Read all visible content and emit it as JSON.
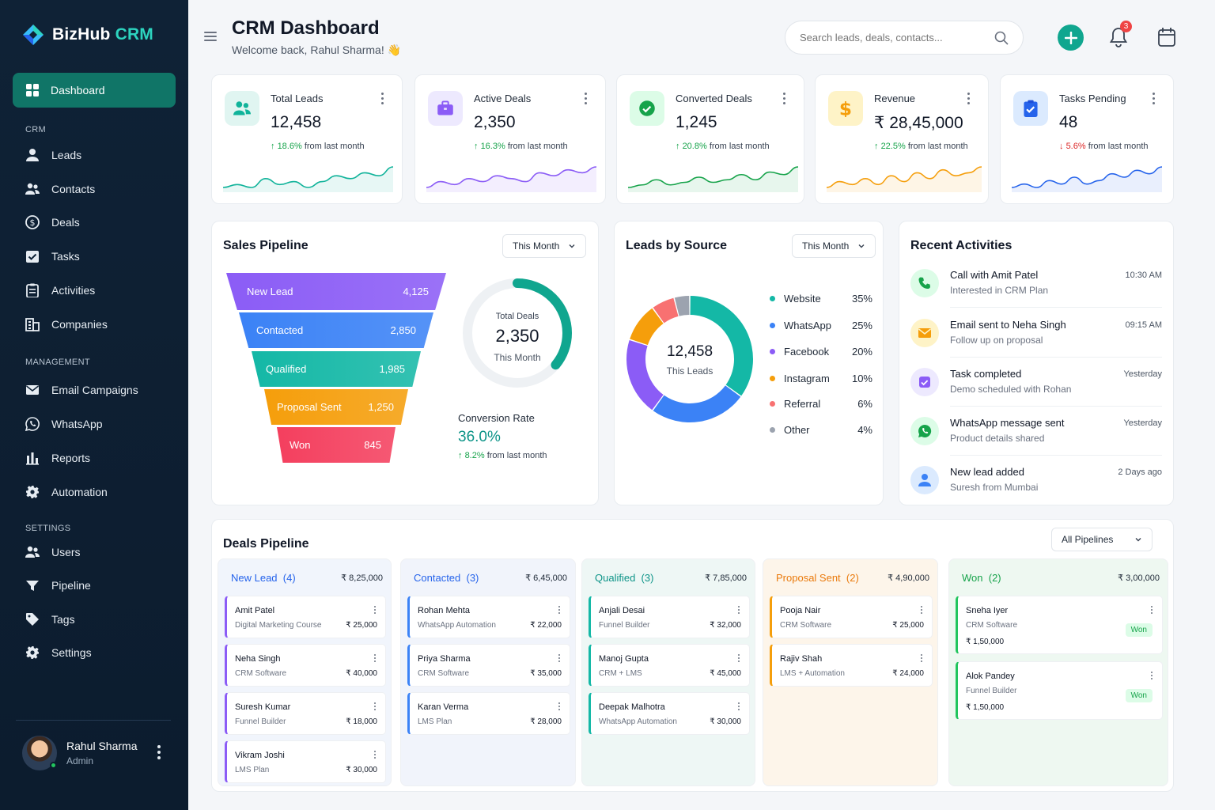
{
  "app": {
    "brand": "BizHub",
    "brand_accent": "CRM"
  },
  "sidebar": {
    "active": {
      "label": "Dashboard",
      "icon": "grid-icon"
    },
    "sections": [
      {
        "title": "CRM"
      },
      {
        "title": "MANAGEMENT"
      },
      {
        "title": "SETTINGS"
      }
    ],
    "items": [
      {
        "label": "Leads",
        "icon": "user-icon"
      },
      {
        "label": "Contacts",
        "icon": "users-icon"
      },
      {
        "label": "Deals",
        "icon": "dollar-icon"
      },
      {
        "label": "Tasks",
        "icon": "checkbox-icon"
      },
      {
        "label": "Activities",
        "icon": "clipboard-icon"
      },
      {
        "label": "Companies",
        "icon": "building-icon"
      },
      {
        "label": "Email Campaigns",
        "icon": "mail-icon"
      },
      {
        "label": "WhatsApp",
        "icon": "whatsapp-icon"
      },
      {
        "label": "Reports",
        "icon": "bar-chart-icon"
      },
      {
        "label": "Automation",
        "icon": "gear-icon"
      },
      {
        "label": "Users",
        "icon": "users-icon"
      },
      {
        "label": "Pipeline",
        "icon": "funnel-icon"
      },
      {
        "label": "Tags",
        "icon": "tag-icon"
      },
      {
        "label": "Settings",
        "icon": "gear-icon"
      }
    ],
    "user": {
      "name": "Rahul Sharma",
      "role": "Admin"
    }
  },
  "header": {
    "title": "CRM Dashboard",
    "subtitle": "Welcome back, Rahul Sharma! 👋",
    "search_placeholder": "Search leads, deals, contacts...",
    "notification_count": "3"
  },
  "stats": [
    {
      "label": "Total Leads",
      "value": "12,458",
      "change": "18.6%",
      "dir": "up",
      "suffix": "from last month",
      "color": "#10b39a",
      "icon": "users-icon",
      "spark": [
        5,
        6,
        5,
        8,
        6,
        7,
        5,
        7,
        9,
        8,
        10,
        9,
        12
      ]
    },
    {
      "label": "Active Deals",
      "value": "2,350",
      "change": "16.3%",
      "dir": "up",
      "suffix": "from last month",
      "color": "#8b5cf6",
      "icon": "briefcase-icon",
      "spark": [
        4,
        6,
        5,
        7,
        6,
        8,
        7,
        6,
        9,
        8,
        10,
        9,
        11
      ]
    },
    {
      "label": "Converted Deals",
      "value": "1,245",
      "change": "20.8%",
      "dir": "up",
      "suffix": "from last month",
      "color": "#16a34a",
      "icon": "check-circle-icon",
      "spark": [
        4,
        5,
        7,
        5,
        6,
        8,
        6,
        7,
        9,
        7,
        10,
        9,
        12
      ]
    },
    {
      "label": "Revenue",
      "value": "₹ 28,45,000",
      "change": "22.5%",
      "dir": "up",
      "suffix": "from last month",
      "color": "#f59e0b",
      "icon": "dollar-icon",
      "spark": [
        5,
        7,
        6,
        8,
        6,
        9,
        7,
        10,
        8,
        11,
        9,
        10,
        12
      ]
    },
    {
      "label": "Tasks Pending",
      "value": "48",
      "change": "5.6%",
      "dir": "down",
      "suffix": "from last month",
      "color": "#2563eb",
      "icon": "clipboard-icon",
      "spark": [
        6,
        7,
        6,
        8,
        7,
        9,
        7,
        8,
        10,
        9,
        11,
        10,
        12
      ]
    }
  ],
  "pipeline": {
    "title": "Sales Pipeline",
    "filter": "This Month",
    "stages": [
      {
        "label": "New Lead",
        "value": "4,125",
        "color": "#8b5cf6"
      },
      {
        "label": "Contacted",
        "value": "2,850",
        "color": "#3b82f6"
      },
      {
        "label": "Qualified",
        "value": "1,985",
        "color": "#14b8a6"
      },
      {
        "label": "Proposal Sent",
        "value": "1,250",
        "color": "#f59e0b"
      },
      {
        "label": "Won",
        "value": "845",
        "color": "#f43f5e"
      }
    ],
    "donut": {
      "label": "Total Deals",
      "value": "2,350",
      "sub": "This Month",
      "fraction": 0.36
    },
    "conversion_label": "Conversion Rate",
    "conversion_value": "36.0%",
    "conversion_change": "8.2%",
    "conversion_suffix": "from last month"
  },
  "sources": {
    "title": "Leads by Source",
    "filter": "This Month",
    "center_value": "12,458",
    "center_label": "This Leads",
    "items": [
      {
        "label": "Website",
        "pct": "35%",
        "value": 35,
        "color": "#14b8a6"
      },
      {
        "label": "WhatsApp",
        "pct": "25%",
        "value": 25,
        "color": "#3b82f6"
      },
      {
        "label": "Facebook",
        "pct": "20%",
        "value": 20,
        "color": "#8b5cf6"
      },
      {
        "label": "Instagram",
        "pct": "10%",
        "value": 10,
        "color": "#f59e0b"
      },
      {
        "label": "Referral",
        "pct": "6%",
        "value": 6,
        "color": "#f87171"
      },
      {
        "label": "Other",
        "pct": "4%",
        "value": 4,
        "color": "#9ca3af"
      }
    ]
  },
  "activities": {
    "title": "Recent Activities",
    "items": [
      {
        "title": "Call with Amit Patel",
        "sub": "Interested in CRM Plan",
        "time": "10:30 AM",
        "icon": "phone-icon",
        "color": "#16a34a",
        "bg": "#dcfce7"
      },
      {
        "title": "Email sent to Neha Singh",
        "sub": "Follow up on proposal",
        "time": "09:15 AM",
        "icon": "mail-icon",
        "color": "#f59e0b",
        "bg": "#fef3c7"
      },
      {
        "title": "Task completed",
        "sub": "Demo scheduled with Rohan",
        "time": "Yesterday",
        "icon": "checkbox-icon",
        "color": "#8b5cf6",
        "bg": "#ede9fe"
      },
      {
        "title": "WhatsApp message sent",
        "sub": "Product details shared",
        "time": "Yesterday",
        "icon": "whatsapp-icon",
        "color": "#16a34a",
        "bg": "#dcfce7"
      },
      {
        "title": "New lead added",
        "sub": "Suresh from Mumbai",
        "time": "2 Days ago",
        "icon": "user-icon",
        "color": "#3b82f6",
        "bg": "#dbeafe"
      }
    ]
  },
  "deals": {
    "title": "Deals Pipeline",
    "filter": "All Pipelines",
    "won_label": "Won",
    "columns": [
      {
        "name": "New Lead",
        "count": "(4)",
        "total": "₹ 8,25,000",
        "color": "#2563eb",
        "bg": "#f1f5fc",
        "border": "#8b5cf6",
        "cards": [
          {
            "name": "Amit Patel",
            "product": "Digital Marketing Course",
            "amount": "₹ 25,000"
          },
          {
            "name": "Neha Singh",
            "product": "CRM Software",
            "amount": "₹ 40,000"
          },
          {
            "name": "Suresh Kumar",
            "product": "Funnel Builder",
            "amount": "₹ 18,000"
          },
          {
            "name": "Vikram Joshi",
            "product": "LMS Plan",
            "amount": "₹ 30,000"
          }
        ]
      },
      {
        "name": "Contacted",
        "count": "(3)",
        "total": "₹ 6,45,000",
        "color": "#2563eb",
        "bg": "#f1f4fb",
        "border": "#3b82f6",
        "cards": [
          {
            "name": "Rohan Mehta",
            "product": "WhatsApp Automation",
            "amount": "₹ 22,000"
          },
          {
            "name": "Priya Sharma",
            "product": "CRM Software",
            "amount": "₹ 35,000"
          },
          {
            "name": "Karan Verma",
            "product": "LMS Plan",
            "amount": "₹ 28,000"
          }
        ]
      },
      {
        "name": "Qualified",
        "count": "(3)",
        "total": "₹ 7,85,000",
        "color": "#0d9488",
        "bg": "#eef7f5",
        "border": "#14b8a6",
        "cards": [
          {
            "name": "Anjali Desai",
            "product": "Funnel Builder",
            "amount": "₹ 32,000"
          },
          {
            "name": "Manoj Gupta",
            "product": "CRM + LMS",
            "amount": "₹ 45,000"
          },
          {
            "name": "Deepak Malhotra",
            "product": "WhatsApp Automation",
            "amount": "₹ 30,000"
          }
        ]
      },
      {
        "name": "Proposal Sent",
        "count": "(2)",
        "total": "₹ 4,90,000",
        "color": "#ea7a0c",
        "bg": "#fdf5ea",
        "border": "#f59e0b",
        "cards": [
          {
            "name": "Pooja Nair",
            "product": "CRM Software",
            "amount": "₹ 25,000"
          },
          {
            "name": "Rajiv Shah",
            "product": "LMS + Automation",
            "amount": "₹ 24,000"
          }
        ]
      },
      {
        "name": "Won",
        "count": "(2)",
        "total": "₹ 3,00,000",
        "color": "#16a34a",
        "bg": "#eef8f1",
        "border": "#22c55e",
        "cards": [
          {
            "name": "Sneha Iyer",
            "product": "CRM Software",
            "amount": "₹ 1,50,000"
          },
          {
            "name": "Alok Pandey",
            "product": "Funnel Builder",
            "amount": "₹ 1,50,000"
          }
        ]
      }
    ]
  }
}
